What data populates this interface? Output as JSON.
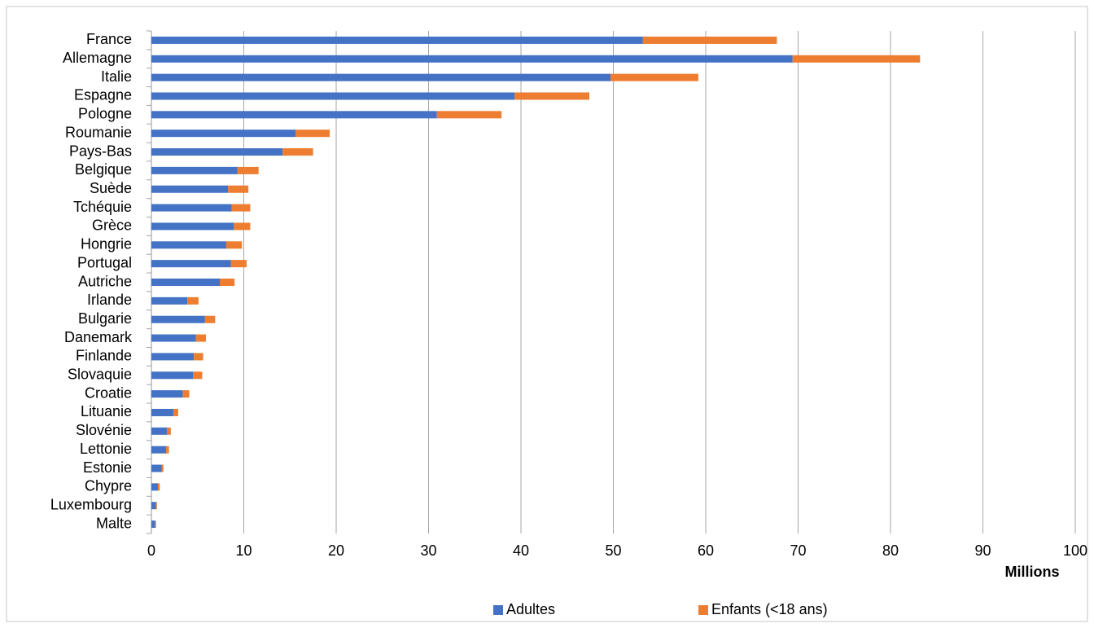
{
  "chart_data": {
    "type": "stacked-bar-horizontal",
    "categories": [
      "France",
      "Allemagne",
      "Italie",
      "Espagne",
      "Pologne",
      "Roumanie",
      "Pays-Bas",
      "Belgique",
      "Suède",
      "Tchéquie",
      "Grèce",
      "Hongrie",
      "Portugal",
      "Autriche",
      "Irlande",
      "Bulgarie",
      "Danemark",
      "Finlande",
      "Slovaquie",
      "Croatie",
      "Lituanie",
      "Slovénie",
      "Lettonie",
      "Estonie",
      "Chypre",
      "Luxembourg",
      "Malte"
    ],
    "series": [
      {
        "name": "Adultes",
        "color": "#4472c4",
        "values": [
          53.2,
          69.4,
          49.7,
          39.3,
          30.9,
          15.6,
          14.2,
          9.3,
          8.3,
          8.7,
          8.9,
          8.1,
          8.6,
          7.4,
          3.9,
          5.8,
          4.8,
          4.6,
          4.5,
          3.4,
          2.4,
          1.7,
          1.6,
          1.1,
          0.7,
          0.5,
          0.4
        ]
      },
      {
        "name": "Enfants (<18 ans)",
        "color": "#ed7d31",
        "values": [
          14.5,
          13.8,
          9.5,
          8.1,
          7.0,
          3.7,
          3.3,
          2.3,
          2.2,
          2.0,
          1.8,
          1.7,
          1.7,
          1.6,
          1.2,
          1.1,
          1.1,
          1.0,
          1.0,
          0.7,
          0.5,
          0.4,
          0.3,
          0.2,
          0.2,
          0.1,
          0.1
        ]
      }
    ],
    "xlabel": "Millions",
    "xlim": [
      0,
      100
    ],
    "xticks": [
      0,
      10,
      20,
      30,
      40,
      50,
      60,
      70,
      80,
      90,
      100
    ],
    "grid": true,
    "legend": "bottom"
  }
}
